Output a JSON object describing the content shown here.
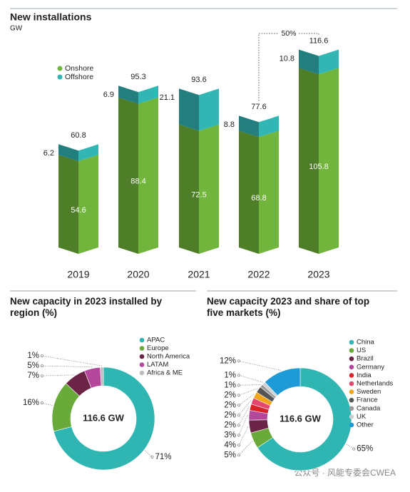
{
  "chart_data": [
    {
      "type": "bar",
      "stacked": true,
      "title": "New installations",
      "subtitle": "GW",
      "categories": [
        "2019",
        "2020",
        "2021",
        "2022",
        "2023"
      ],
      "series": [
        {
          "name": "Onshore",
          "color": "#72b53c",
          "values": [
            54.6,
            88.4,
            72.5,
            68.8,
            105.8
          ]
        },
        {
          "name": "Offshore",
          "color": "#32b6b4",
          "values": [
            6.2,
            6.9,
            21.1,
            8.8,
            10.8
          ]
        }
      ],
      "totals": [
        60.8,
        95.3,
        93.6,
        77.6,
        116.6
      ],
      "annotation": "50%"
    },
    {
      "type": "pie",
      "title": "New capacity in 2023 installed by region (%)",
      "center_label": "116.6 GW",
      "categories": [
        "APAC",
        "Europe",
        "North America",
        "LATAM",
        "Africa & ME"
      ],
      "values": [
        71,
        16,
        7,
        5,
        1
      ],
      "value_labels": [
        "71%",
        "16%",
        "7%",
        "5%",
        "1%"
      ],
      "colors": [
        "#2fb5b2",
        "#6aaa3a",
        "#6b2346",
        "#b5479a",
        "#bdbdbd"
      ]
    },
    {
      "type": "pie",
      "title": "New capacity 2023 and share of top five markets (%)",
      "center_label": "116.6 GW",
      "categories": [
        "China",
        "US",
        "Brazil",
        "Germany",
        "India",
        "Netherlands",
        "Sweden",
        "France",
        "Canada",
        "UK",
        "Other"
      ],
      "values": [
        65,
        5,
        4,
        3,
        2,
        2,
        2,
        2,
        1,
        1,
        12
      ],
      "value_labels": [
        "65%",
        "5%",
        "4%",
        "3%",
        "2%",
        "2%",
        "2%",
        "2%",
        "1%",
        "1%",
        "12%"
      ],
      "colors": [
        "#2fb5b2",
        "#6aaa3a",
        "#6b2346",
        "#b5479a",
        "#d8232a",
        "#e6456e",
        "#f2a51a",
        "#555555",
        "#9a9a9a",
        "#cfcfcf",
        "#1e9ad6"
      ]
    }
  ],
  "watermark": "公众号 · 风能专委会CWEA"
}
